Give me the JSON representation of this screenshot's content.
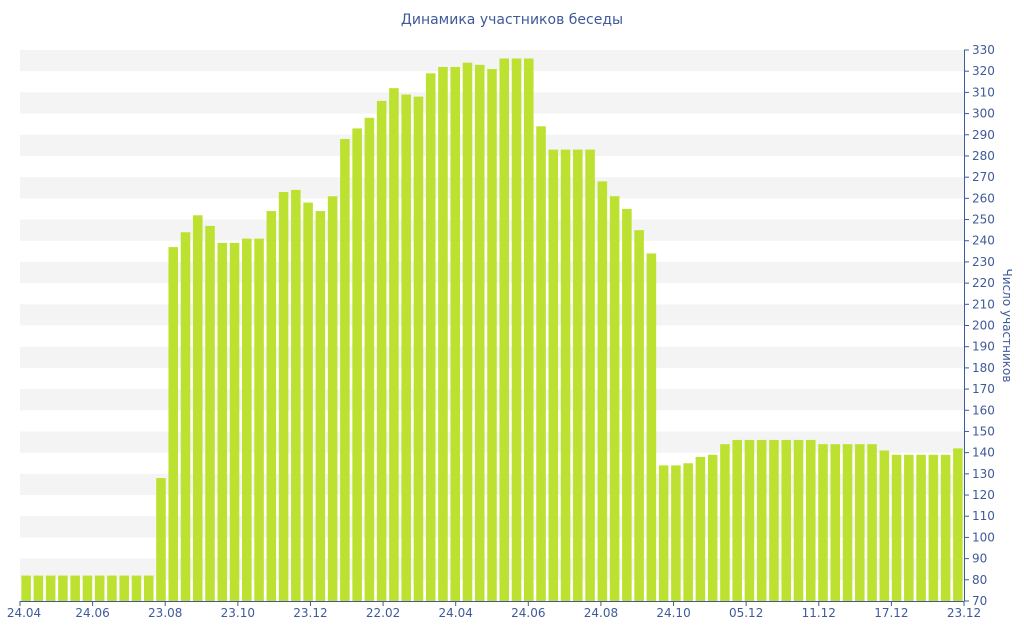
{
  "chart_data": {
    "type": "bar",
    "title": "Динамика участников беседы",
    "ylabel": "Число участников",
    "xlabel": "",
    "ylim": [
      70,
      330
    ],
    "y_tick_step": 10,
    "grid": "horizontal bands",
    "y_axis_side": "right",
    "x_tick_labels": [
      "24.04",
      "24.06",
      "23.08",
      "23.10",
      "23.12",
      "22.02",
      "24.04",
      "24.06",
      "24.08",
      "24.10",
      "05.12",
      "11.12",
      "17.12",
      "23.12"
    ],
    "values": [
      82,
      82,
      82,
      82,
      82,
      82,
      82,
      82,
      82,
      82,
      82,
      128,
      237,
      244,
      252,
      247,
      239,
      239,
      241,
      241,
      254,
      263,
      264,
      258,
      254,
      261,
      288,
      293,
      298,
      306,
      312,
      309,
      308,
      319,
      322,
      322,
      324,
      323,
      321,
      326,
      326,
      326,
      294,
      283,
      283,
      283,
      283,
      268,
      261,
      255,
      245,
      234,
      134,
      134,
      135,
      138,
      139,
      144,
      146,
      146,
      146,
      146,
      146,
      146,
      146,
      144,
      144,
      144,
      144,
      144,
      141,
      139,
      139,
      139,
      139,
      139,
      142
    ],
    "colors": {
      "bar": "#bde131",
      "band": "#f4f4f4",
      "text": "#3f5a9a",
      "axis": "#3f5a9a"
    }
  }
}
